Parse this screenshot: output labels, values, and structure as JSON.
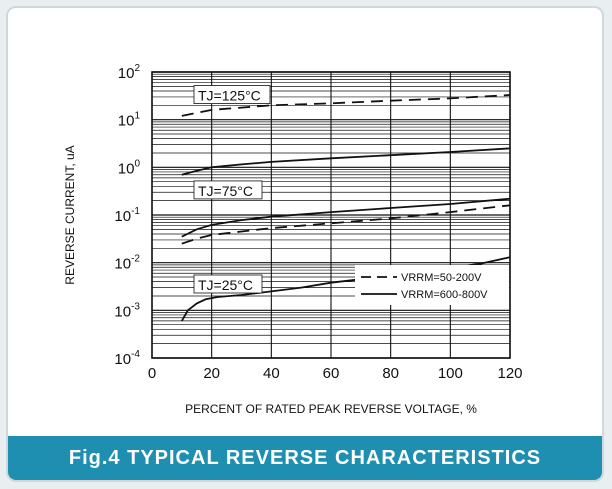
{
  "caption": "Fig.4 TYPICAL REVERSE CHARACTERISTICS",
  "colors": {
    "accent": "#1e8fb0",
    "line": "#111111"
  },
  "chart_data": {
    "type": "line",
    "title": "",
    "xlabel": "PERCENT OF RATED PEAK REVERSE VOLTAGE, %",
    "ylabel": "REVERSE CURRENT, uA",
    "xlim": [
      0,
      120
    ],
    "ylim": [
      0.0001,
      100
    ],
    "yscale": "log",
    "grid": true,
    "x_ticks": [
      "0",
      "20",
      "40",
      "60",
      "80",
      "100",
      "120"
    ],
    "y_ticks": [
      {
        "base": "10",
        "exp": "2"
      },
      {
        "base": "10",
        "exp": "1"
      },
      {
        "base": "10",
        "exp": "0"
      },
      {
        "base": "10",
        "exp": "-1"
      },
      {
        "base": "10",
        "exp": "-2"
      },
      {
        "base": "10",
        "exp": "-3"
      },
      {
        "base": "10",
        "exp": "-4"
      }
    ],
    "curve_labels": [
      {
        "text": "TJ=125°C",
        "tj": "125"
      },
      {
        "text": "TJ=75°C",
        "tj": "75"
      },
      {
        "text": "TJ=25°C",
        "tj": "25"
      }
    ],
    "legend": [
      {
        "text": "VRRM=50-200V",
        "style": "dashed"
      },
      {
        "text": "VRRM=600-800V",
        "style": "solid"
      }
    ],
    "legend_position": "bottom-right",
    "series": [
      {
        "tj": "125",
        "vrrm": "50-200V",
        "style": "dashed",
        "x": [
          10,
          20,
          40,
          60,
          80,
          100,
          120
        ],
        "y": [
          12,
          16,
          20,
          22,
          25,
          28,
          33
        ]
      },
      {
        "tj": "125",
        "vrrm": "600-800V",
        "style": "solid",
        "x": [
          10,
          15,
          20,
          30,
          40,
          60,
          80,
          100,
          120
        ],
        "y": [
          0.7,
          0.85,
          1.0,
          1.15,
          1.3,
          1.55,
          1.8,
          2.1,
          2.5
        ]
      },
      {
        "tj": "75",
        "vrrm": "50-200V",
        "style": "dashed",
        "x": [
          10,
          15,
          20,
          30,
          40,
          60,
          80,
          100,
          120
        ],
        "y": [
          0.025,
          0.032,
          0.038,
          0.045,
          0.053,
          0.067,
          0.085,
          0.115,
          0.16
        ]
      },
      {
        "tj": "75",
        "vrrm": "600-800V",
        "style": "solid",
        "x": [
          10,
          15,
          20,
          30,
          40,
          60,
          80,
          100,
          120
        ],
        "y": [
          0.035,
          0.05,
          0.062,
          0.078,
          0.092,
          0.115,
          0.14,
          0.17,
          0.22
        ]
      },
      {
        "tj": "25",
        "vrrm": "600-800V",
        "style": "solid",
        "x": [
          10,
          12,
          15,
          18,
          22,
          30,
          40,
          50,
          60,
          70,
          80,
          90,
          100,
          110,
          120
        ],
        "y": [
          0.0006,
          0.001,
          0.0014,
          0.0017,
          0.0019,
          0.0021,
          0.0025,
          0.003,
          0.0038,
          0.0045,
          0.0055,
          0.0065,
          0.0078,
          0.0095,
          0.013
        ]
      }
    ]
  }
}
